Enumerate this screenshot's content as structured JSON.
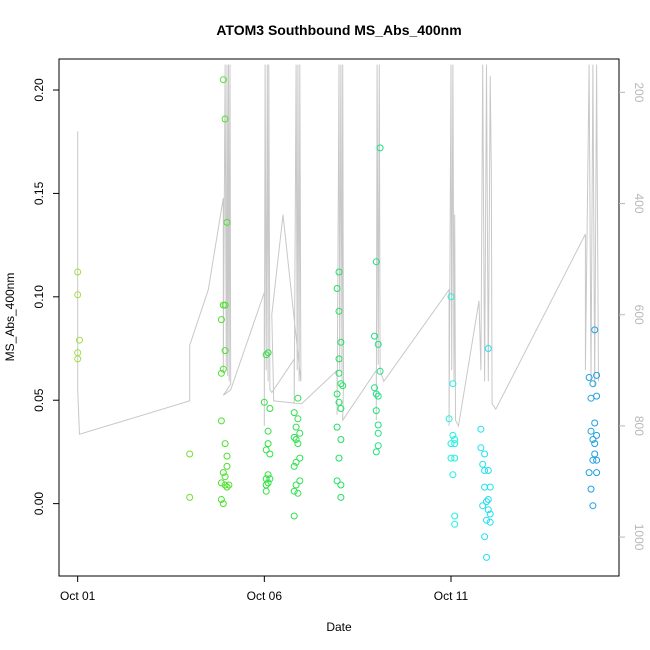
{
  "chart_data": {
    "type": "scatter",
    "title": "ATOM3 Southbound MS_Abs_400nm",
    "xlabel": "Date",
    "ylabel": "MS_Abs_400nm",
    "x_unit": "day of October",
    "xlim": [
      0.5,
      15.5
    ],
    "ylim": [
      -0.035,
      0.215
    ],
    "x_ticks": [
      {
        "value": 1,
        "label": "Oct 01"
      },
      {
        "value": 6,
        "label": "Oct 06"
      },
      {
        "value": 11,
        "label": "Oct 11"
      }
    ],
    "y_ticks": [
      {
        "value": 0.0,
        "label": "0.00"
      },
      {
        "value": 0.05,
        "label": "0.05"
      },
      {
        "value": 0.1,
        "label": "0.10"
      },
      {
        "value": 0.15,
        "label": "0.15"
      },
      {
        "value": 0.2,
        "label": "0.20"
      }
    ],
    "y2lim": [
      1070,
      140
    ],
    "y2_ticks": [
      {
        "value": 200,
        "label": "200"
      },
      {
        "value": 400,
        "label": "400"
      },
      {
        "value": 600,
        "label": "600"
      },
      {
        "value": 800,
        "label": "800"
      },
      {
        "value": 1000,
        "label": "1000"
      }
    ],
    "grid": false,
    "legend": "none",
    "colors": {
      "profile_line": "#c8c8c8",
      "axis": "#000000",
      "right_axis": "#b8b8b8"
    },
    "series": [
      {
        "color": "#a0e040",
        "points": [
          [
            1.0,
            0.112
          ],
          [
            1.0,
            0.101
          ],
          [
            1.05,
            0.079
          ],
          [
            1.0,
            0.073
          ],
          [
            1.0,
            0.07
          ]
        ]
      },
      {
        "color": "#70e030",
        "points": [
          [
            4.0,
            0.024
          ],
          [
            4.0,
            0.003
          ]
        ]
      },
      {
        "color": "#50e030",
        "points": [
          [
            4.9,
            0.205
          ],
          [
            4.95,
            0.186
          ],
          [
            5.0,
            0.136
          ],
          [
            4.9,
            0.096
          ],
          [
            4.95,
            0.096
          ],
          [
            4.85,
            0.089
          ],
          [
            4.95,
            0.074
          ],
          [
            4.9,
            0.065
          ],
          [
            4.85,
            0.063
          ],
          [
            4.85,
            0.04
          ],
          [
            4.95,
            0.029
          ],
          [
            5.0,
            0.023
          ],
          [
            5.0,
            0.018
          ],
          [
            4.9,
            0.015
          ],
          [
            4.95,
            0.013
          ],
          [
            4.85,
            0.01
          ],
          [
            5.0,
            0.008
          ],
          [
            5.05,
            0.009
          ],
          [
            4.95,
            0.009
          ],
          [
            4.85,
            0.002
          ],
          [
            4.9,
            0.0
          ]
        ]
      },
      {
        "color": "#30e040",
        "points": [
          [
            6.1,
            0.073
          ],
          [
            6.05,
            0.072
          ],
          [
            6.0,
            0.049
          ],
          [
            6.15,
            0.046
          ],
          [
            6.1,
            0.035
          ],
          [
            6.05,
            0.026
          ],
          [
            6.1,
            0.029
          ],
          [
            6.15,
            0.024
          ],
          [
            6.1,
            0.014
          ],
          [
            6.05,
            0.012
          ],
          [
            6.15,
            0.012
          ],
          [
            6.05,
            0.009
          ],
          [
            6.1,
            0.01
          ],
          [
            6.05,
            0.006
          ]
        ]
      },
      {
        "color": "#30e050",
        "points": [
          [
            6.9,
            0.051
          ],
          [
            6.8,
            0.044
          ],
          [
            6.9,
            0.041
          ],
          [
            6.95,
            0.034
          ],
          [
            6.85,
            0.037
          ],
          [
            6.8,
            0.032
          ],
          [
            6.85,
            0.031
          ],
          [
            6.9,
            0.029
          ],
          [
            6.95,
            0.022
          ],
          [
            6.85,
            0.02
          ],
          [
            6.8,
            0.018
          ],
          [
            6.95,
            0.011
          ],
          [
            6.85,
            0.009
          ],
          [
            6.8,
            0.006
          ],
          [
            6.9,
            0.005
          ],
          [
            6.8,
            -0.006
          ]
        ]
      },
      {
        "color": "#20e060",
        "points": [
          [
            8.0,
            0.112
          ],
          [
            7.95,
            0.104
          ],
          [
            8.0,
            0.093
          ],
          [
            8.05,
            0.078
          ],
          [
            8.0,
            0.07
          ],
          [
            8.0,
            0.063
          ],
          [
            8.05,
            0.058
          ],
          [
            8.1,
            0.057
          ],
          [
            7.95,
            0.053
          ],
          [
            8.0,
            0.049
          ],
          [
            8.05,
            0.046
          ],
          [
            7.95,
            0.037
          ],
          [
            8.05,
            0.031
          ],
          [
            8.0,
            0.022
          ],
          [
            7.95,
            0.011
          ],
          [
            8.05,
            0.009
          ],
          [
            8.05,
            0.003
          ]
        ]
      },
      {
        "color": "#20e080",
        "points": [
          [
            9.1,
            0.172
          ],
          [
            9.0,
            0.117
          ],
          [
            8.95,
            0.081
          ],
          [
            9.05,
            0.077
          ],
          [
            9.1,
            0.064
          ],
          [
            8.95,
            0.056
          ],
          [
            9.0,
            0.053
          ],
          [
            9.05,
            0.052
          ],
          [
            9.0,
            0.045
          ],
          [
            9.05,
            0.038
          ],
          [
            9.05,
            0.034
          ],
          [
            9.05,
            0.028
          ],
          [
            9.0,
            0.025
          ]
        ]
      },
      {
        "color": "#20f0e0",
        "points": [
          [
            11.0,
            0.1
          ],
          [
            11.05,
            0.058
          ],
          [
            10.95,
            0.041
          ],
          [
            11.05,
            0.033
          ],
          [
            11.1,
            0.031
          ],
          [
            11.0,
            0.029
          ],
          [
            11.1,
            0.029
          ],
          [
            11.0,
            0.022
          ],
          [
            11.1,
            0.022
          ],
          [
            11.05,
            0.014
          ],
          [
            11.1,
            -0.006
          ],
          [
            11.1,
            -0.01
          ]
        ]
      },
      {
        "color": "#20e0f0",
        "points": [
          [
            12.0,
            0.075
          ],
          [
            11.8,
            0.036
          ],
          [
            11.8,
            0.027
          ],
          [
            11.9,
            0.024
          ],
          [
            11.85,
            0.019
          ],
          [
            11.9,
            0.016
          ],
          [
            12.0,
            0.016
          ],
          [
            11.9,
            0.008
          ],
          [
            12.05,
            0.008
          ],
          [
            11.95,
            0.001
          ],
          [
            12.0,
            0.002
          ],
          [
            11.85,
            -0.001
          ],
          [
            12.0,
            -0.003
          ],
          [
            12.05,
            -0.005
          ],
          [
            11.95,
            -0.008
          ],
          [
            12.05,
            -0.009
          ],
          [
            11.9,
            -0.016
          ],
          [
            11.95,
            -0.026
          ]
        ]
      },
      {
        "color": "#20a0e0",
        "points": [
          [
            14.85,
            0.084
          ],
          [
            14.7,
            0.061
          ],
          [
            14.8,
            0.058
          ],
          [
            14.9,
            0.062
          ],
          [
            14.75,
            0.051
          ],
          [
            14.9,
            0.052
          ],
          [
            14.85,
            0.039
          ],
          [
            14.75,
            0.035
          ],
          [
            14.9,
            0.033
          ],
          [
            14.8,
            0.031
          ],
          [
            14.85,
            0.029
          ],
          [
            14.8,
            0.021
          ],
          [
            14.85,
            0.024
          ],
          [
            14.9,
            0.021
          ],
          [
            14.7,
            0.015
          ],
          [
            14.9,
            0.015
          ],
          [
            14.75,
            0.007
          ],
          [
            14.8,
            -0.001
          ]
        ]
      }
    ],
    "profile_line": [
      [
        1.0,
        520
      ],
      [
        1.0,
        470
      ],
      [
        1.0,
        395
      ],
      [
        1.0,
        270
      ],
      [
        1.0,
        328
      ],
      [
        1.0,
        610
      ],
      [
        1.0,
        735
      ],
      [
        1.05,
        815
      ],
      [
        4.0,
        755
      ],
      [
        4.0,
        655
      ],
      [
        4.5,
        555
      ],
      [
        4.9,
        390
      ],
      [
        4.9,
        705
      ],
      [
        4.95,
        150
      ],
      [
        4.98,
        700
      ],
      [
        5.0,
        150
      ],
      [
        5.02,
        710
      ],
      [
        5.04,
        150
      ],
      [
        5.06,
        720
      ],
      [
        5.08,
        150
      ],
      [
        5.1,
        725
      ],
      [
        4.9,
        745
      ],
      [
        5.1,
        735
      ],
      [
        6.0,
        560
      ],
      [
        6.0,
        800
      ],
      [
        6.02,
        150
      ],
      [
        6.05,
        700
      ],
      [
        6.08,
        150
      ],
      [
        6.1,
        720
      ],
      [
        6.12,
        150
      ],
      [
        6.15,
        735
      ],
      [
        6.2,
        740
      ],
      [
        6.8,
        680
      ],
      [
        6.8,
        760
      ],
      [
        6.85,
        150
      ],
      [
        6.88,
        700
      ],
      [
        6.9,
        150
      ],
      [
        6.93,
        720
      ],
      [
        6.95,
        150
      ],
      [
        6.98,
        720
      ],
      [
        6.5,
        420
      ],
      [
        6.2,
        600
      ],
      [
        6.25,
        755
      ],
      [
        7.0,
        760
      ],
      [
        7.95,
        700
      ],
      [
        7.95,
        780
      ],
      [
        8.0,
        150
      ],
      [
        8.02,
        700
      ],
      [
        8.05,
        150
      ],
      [
        8.08,
        720
      ],
      [
        8.1,
        150
      ],
      [
        8.12,
        720
      ],
      [
        8.1,
        790
      ],
      [
        9.0,
        700
      ],
      [
        9.0,
        790
      ],
      [
        9.02,
        150
      ],
      [
        9.05,
        690
      ],
      [
        9.08,
        150
      ],
      [
        9.1,
        700
      ],
      [
        9.2,
        720
      ],
      [
        10.95,
        555
      ],
      [
        10.95,
        800
      ],
      [
        11.0,
        150
      ],
      [
        11.02,
        700
      ],
      [
        11.05,
        150
      ],
      [
        11.08,
        720
      ],
      [
        11.1,
        420
      ],
      [
        11.12,
        790
      ],
      [
        11.2,
        800
      ],
      [
        11.75,
        575
      ],
      [
        11.8,
        700
      ],
      [
        11.85,
        150
      ],
      [
        11.9,
        720
      ],
      [
        11.95,
        150
      ],
      [
        12.0,
        720
      ],
      [
        12.05,
        170
      ],
      [
        12.08,
        340
      ],
      [
        12.1,
        760
      ],
      [
        12.2,
        770
      ],
      [
        14.6,
        455
      ],
      [
        14.6,
        700
      ],
      [
        14.7,
        150
      ],
      [
        14.75,
        720
      ],
      [
        14.8,
        150
      ],
      [
        14.85,
        730
      ],
      [
        14.9,
        150
      ],
      [
        14.95,
        720
      ]
    ]
  }
}
